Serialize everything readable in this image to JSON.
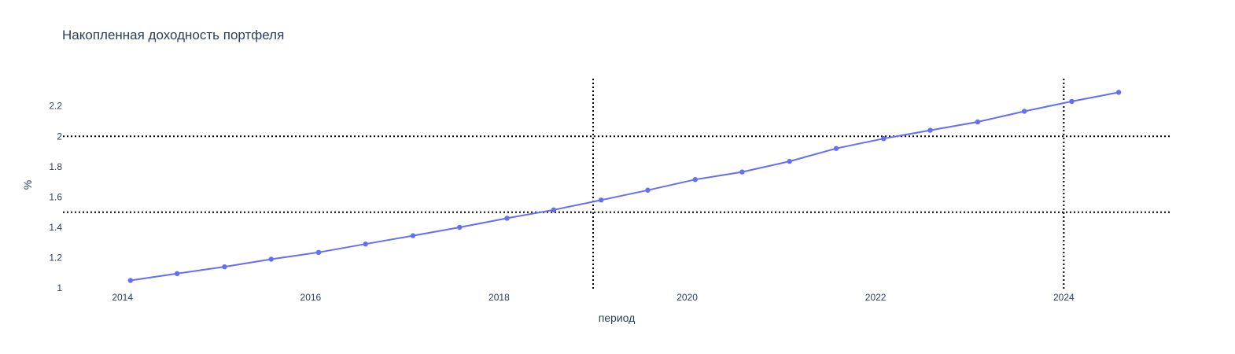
{
  "chart_data": {
    "type": "line",
    "title": "Накопленная доходность портфеля",
    "xlabel": "период",
    "ylabel": "%",
    "xlim": [
      "2013-05-15",
      "2025-02-15"
    ],
    "ylim": [
      0.98,
      2.38
    ],
    "x_ticks": [
      "2014",
      "2016",
      "2018",
      "2020",
      "2022",
      "2024"
    ],
    "y_ticks": [
      "1",
      "1.2",
      "1.4",
      "1.6",
      "1.8",
      "2",
      "2.2"
    ],
    "grid": false,
    "series": [
      {
        "color": "#636efa",
        "x": [
          "2014-02-01",
          "2014-08-01",
          "2015-02-01",
          "2015-08-01",
          "2016-02-01",
          "2016-08-01",
          "2017-02-01",
          "2017-08-01",
          "2018-02-01",
          "2018-08-01",
          "2019-02-01",
          "2019-08-01",
          "2020-02-01",
          "2020-08-01",
          "2021-02-01",
          "2021-08-01",
          "2022-02-01",
          "2022-08-01",
          "2023-02-01",
          "2023-08-01",
          "2024-02-01",
          "2024-08-01"
        ],
        "y": [
          1.05,
          1.095,
          1.14,
          1.19,
          1.235,
          1.29,
          1.345,
          1.4,
          1.46,
          1.515,
          1.58,
          1.645,
          1.715,
          1.765,
          1.835,
          1.92,
          1.985,
          2.04,
          2.095,
          2.165,
          2.23,
          2.29
        ]
      }
    ],
    "reference_lines": {
      "horizontal": [
        2.0,
        1.5
      ],
      "vertical": [
        "2019-01-01",
        "2024-01-01"
      ],
      "style": "dotted",
      "color": "#000000"
    }
  }
}
